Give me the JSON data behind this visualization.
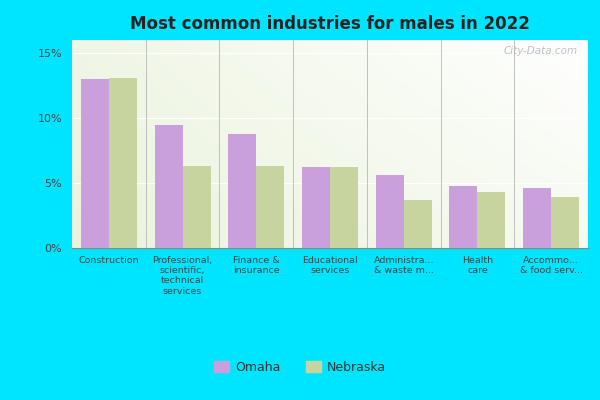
{
  "title": "Most common industries for males in 2022",
  "categories": [
    "Construction",
    "Professional,\nscientific,\ntechnical\nservices",
    "Finance &\ninsurance",
    "Educational\nservices",
    "Administra...\n& waste m...",
    "Health\ncare",
    "Accommo...\n& food serv..."
  ],
  "omaha_values": [
    13.0,
    9.5,
    8.8,
    6.2,
    5.6,
    4.8,
    4.6
  ],
  "nebraska_values": [
    13.1,
    6.3,
    6.3,
    6.2,
    3.7,
    4.3,
    3.9
  ],
  "omaha_color": "#c9a0dc",
  "nebraska_color": "#c8d4a0",
  "outer_background": "#00e5ff",
  "ylim": [
    0,
    16
  ],
  "yticks": [
    0,
    5,
    10,
    15
  ],
  "ytick_labels": [
    "0%",
    "5%",
    "10%",
    "15%"
  ],
  "legend_labels": [
    "Omaha",
    "Nebraska"
  ],
  "bar_width": 0.38,
  "watermark": "City-Data.com"
}
